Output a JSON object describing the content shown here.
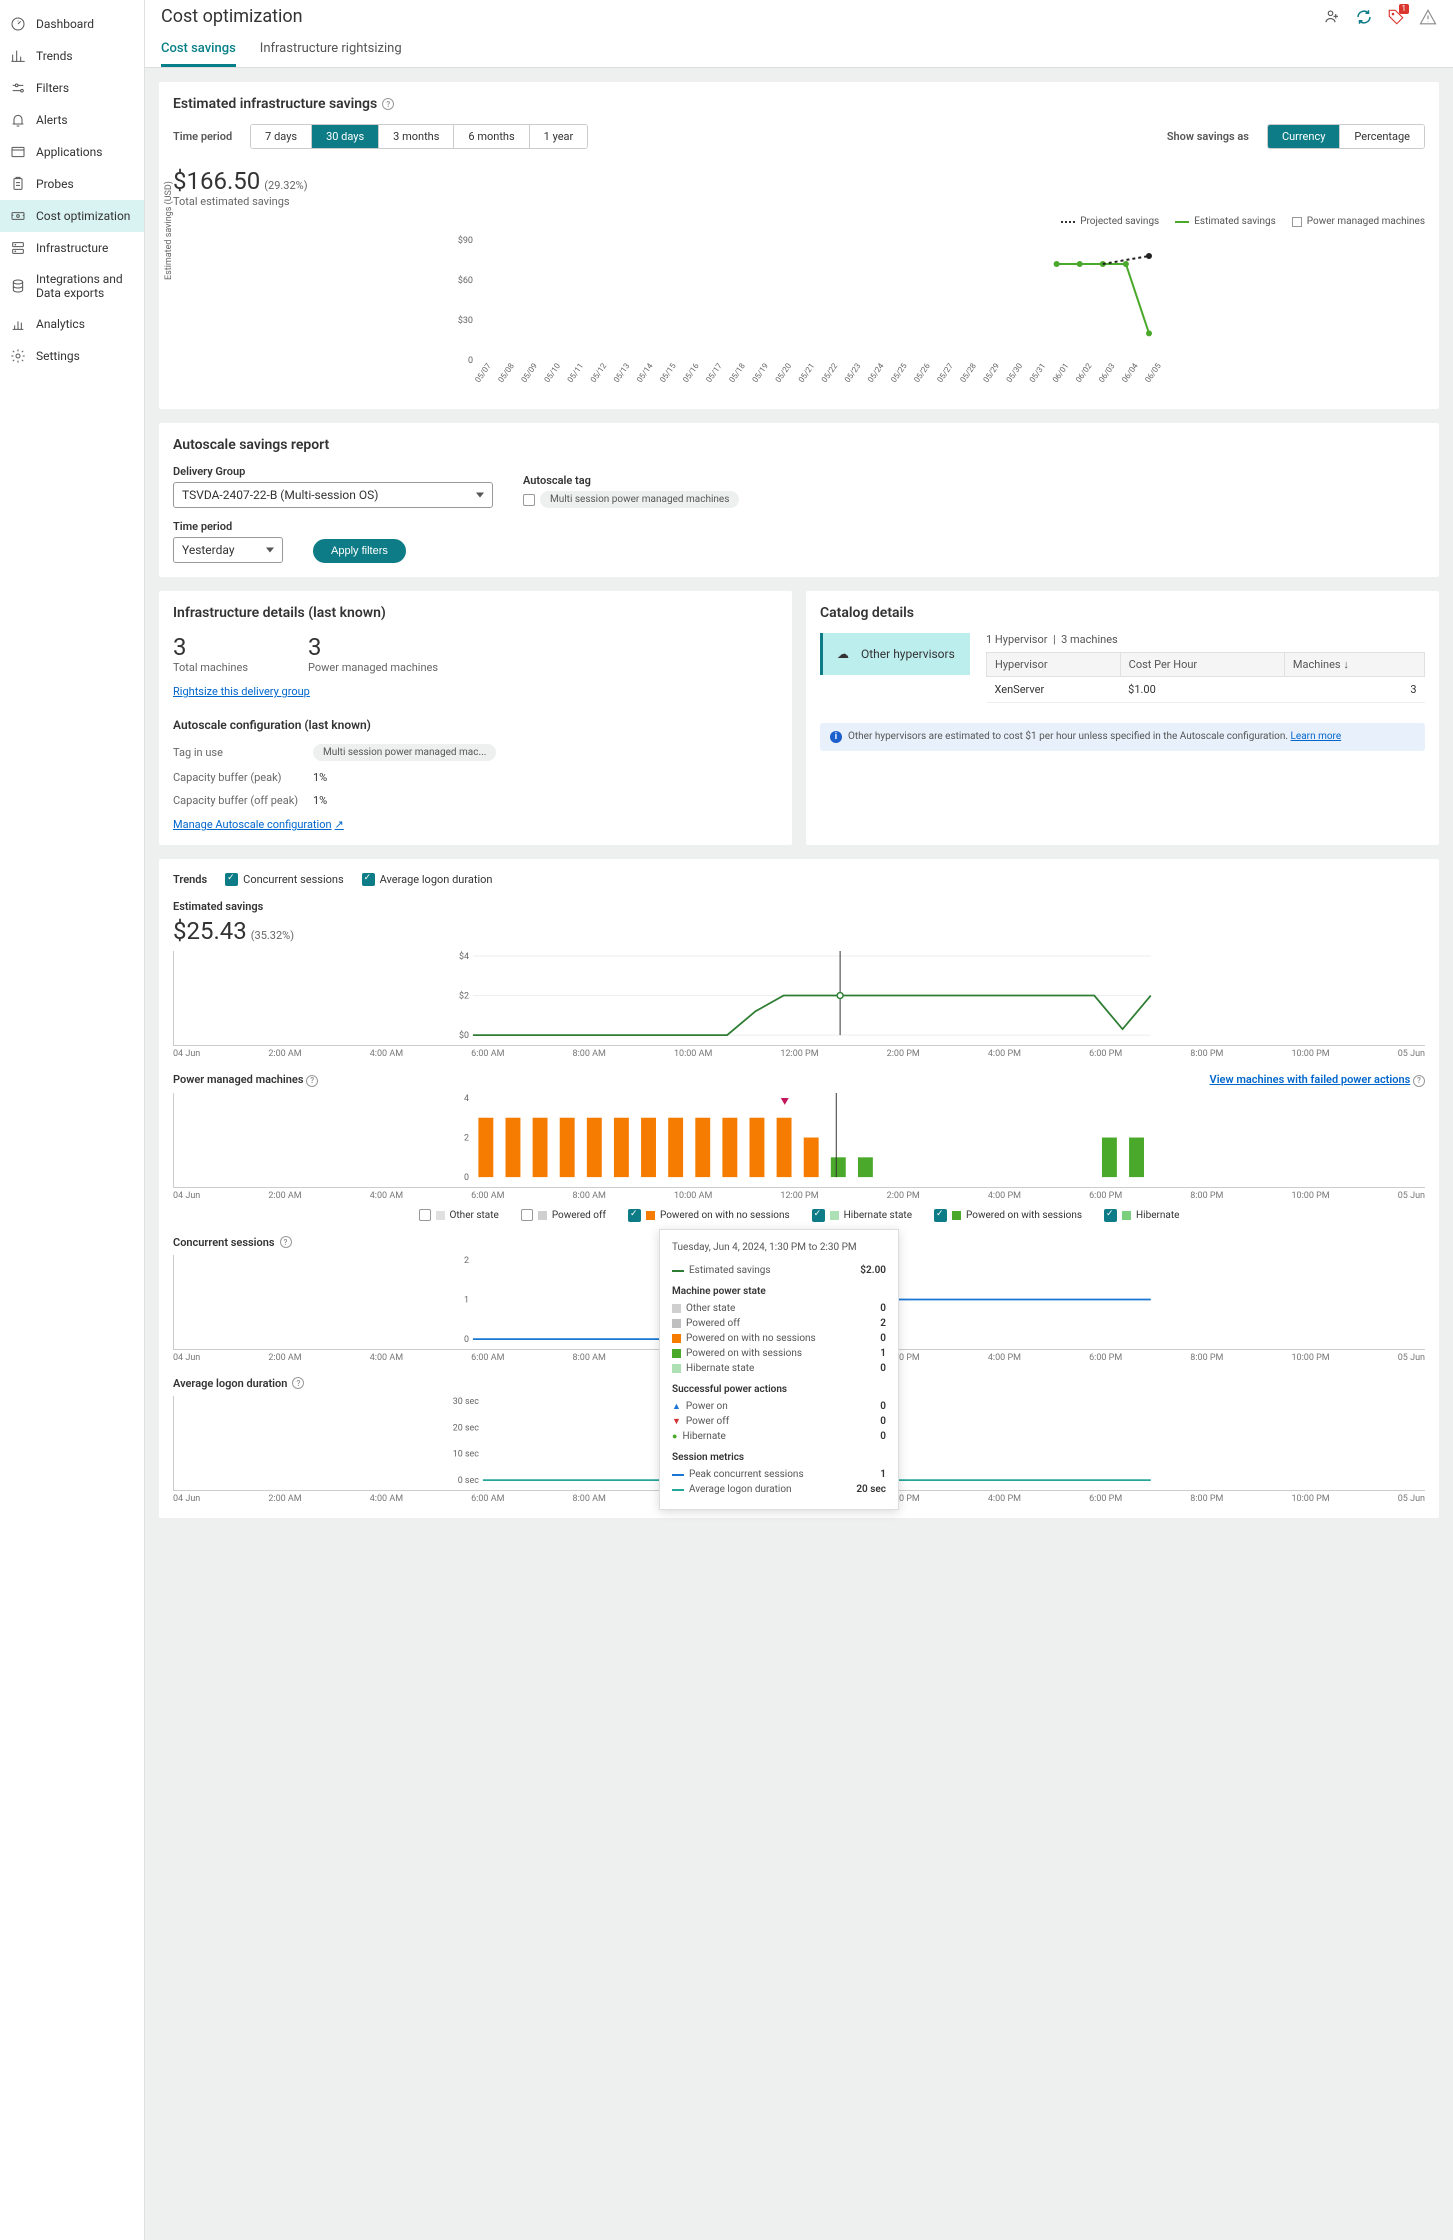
{
  "sidebar": {
    "items": [
      {
        "label": "Dashboard",
        "icon": "gauge"
      },
      {
        "label": "Trends",
        "icon": "bars"
      },
      {
        "label": "Filters",
        "icon": "sliders"
      },
      {
        "label": "Alerts",
        "icon": "bell"
      },
      {
        "label": "Applications",
        "icon": "window"
      },
      {
        "label": "Probes",
        "icon": "clipboard"
      },
      {
        "label": "Cost optimization",
        "icon": "money",
        "active": true
      },
      {
        "label": "Infrastructure",
        "icon": "server"
      },
      {
        "label": "Integrations and Data exports",
        "icon": "db"
      },
      {
        "label": "Analytics",
        "icon": "chart"
      },
      {
        "label": "Settings",
        "icon": "gear"
      }
    ]
  },
  "header": {
    "title": "Cost optimization",
    "tabs": [
      {
        "label": "Cost savings",
        "active": true
      },
      {
        "label": "Infrastructure rightsizing"
      }
    ],
    "alert_badge": "1"
  },
  "est_savings": {
    "title": "Estimated infrastructure savings",
    "time_period_label": "Time period",
    "periods": [
      {
        "label": "7 days"
      },
      {
        "label": "30 days",
        "active": true
      },
      {
        "label": "3 months"
      },
      {
        "label": "6 months"
      },
      {
        "label": "1 year"
      }
    ],
    "show_as_label": "Show savings as",
    "show_as": [
      {
        "label": "Currency",
        "active": true
      },
      {
        "label": "Percentage"
      }
    ],
    "amount": "$166.50",
    "pct": "(29.32%)",
    "sub": "Total estimated savings",
    "legend": {
      "projected": "Projected savings",
      "estimated": "Estimated savings",
      "power": "Power managed machines"
    },
    "y_label": "Estimated savings (USD)",
    "chart": {
      "ylim": [
        0,
        90
      ],
      "yticks": [
        0,
        30,
        60,
        90
      ],
      "ytick_labels": [
        "0",
        "$30",
        "$60",
        "$90"
      ],
      "x_dates": [
        "05/07",
        "05/08",
        "05/09",
        "05/10",
        "05/11",
        "05/12",
        "05/13",
        "05/14",
        "05/15",
        "05/16",
        "05/17",
        "05/18",
        "05/19",
        "05/20",
        "05/21",
        "05/22",
        "05/23",
        "05/24",
        "05/25",
        "05/26",
        "05/27",
        "05/28",
        "05/29",
        "05/30",
        "05/31",
        "06/01",
        "06/02",
        "06/03",
        "06/04",
        "06/05"
      ],
      "estimated_series": {
        "start_idx": 25,
        "values": [
          72,
          72,
          72,
          72,
          20
        ],
        "color": "#4aa82a"
      },
      "projected_series": {
        "start_idx": 27,
        "values": [
          72,
          75,
          78
        ],
        "color": "#222"
      }
    }
  },
  "autoscale": {
    "title": "Autoscale savings report",
    "dg_label": "Delivery Group",
    "dg_value": "TSVDA-2407-22-B (Multi-session OS)",
    "tag_label": "Autoscale tag",
    "tag_chk": "Multi session power managed machines",
    "tp_label": "Time period",
    "tp_value": "Yesterday",
    "apply": "Apply filters"
  },
  "infra": {
    "title": "Infrastructure details (last known)",
    "total_num": "3",
    "total_lbl": "Total machines",
    "pm_num": "3",
    "pm_lbl": "Power managed machines",
    "rightsize_link": "Rightsize this delivery group",
    "cfg_title": "Autoscale configuration (last known)",
    "tag_k": "Tag in use",
    "tag_v": "Multi session power managed mac...",
    "peak_k": "Capacity buffer (peak)",
    "peak_v": "1%",
    "off_k": "Capacity buffer (off peak)",
    "off_v": "1%",
    "manage_link": "Manage Autoscale configuration"
  },
  "catalog": {
    "title": "Catalog details",
    "banner": "Other hypervisors",
    "head_hv": "1 Hypervisor",
    "head_mc": "3 machines",
    "cols": {
      "hv": "Hypervisor",
      "cph": "Cost Per Hour",
      "mc": "Machines"
    },
    "row": {
      "hv": "XenServer",
      "cph": "$1.00",
      "mc": "3"
    },
    "info": "Other hypervisors are estimated to cost $1 per hour unless specified in the Autoscale configuration.",
    "learn": "Learn more"
  },
  "trends": {
    "head_label": "Trends",
    "chk1": "Concurrent sessions",
    "chk2": "Average logon duration",
    "est_title": "Estimated savings",
    "est_amount": "$25.43",
    "est_pct": "(35.32%)",
    "x_labels": [
      "04 Jun",
      "2:00 AM",
      "4:00 AM",
      "6:00 AM",
      "8:00 AM",
      "10:00 AM",
      "12:00 PM",
      "2:00 PM",
      "4:00 PM",
      "6:00 PM",
      "8:00 PM",
      "10:00 PM",
      "05 Jun"
    ],
    "est_chart": {
      "yticks": [
        "$0",
        "$2",
        "$4"
      ],
      "series_color": "#2e7d32",
      "values": [
        0,
        0,
        0,
        0,
        0,
        0,
        0,
        0,
        0,
        0,
        1.2,
        2,
        2,
        2,
        2,
        2,
        2,
        2,
        2,
        2,
        2,
        2,
        2,
        0.3,
        2
      ]
    },
    "pm_title": "Power managed machines",
    "pm_link": "View machines with failed power actions",
    "pm_chart": {
      "yticks": [
        "0",
        "2",
        "4"
      ],
      "bar_color": "#f57c00",
      "bar2_color": "#4aa82a",
      "bars": [
        3,
        3,
        3,
        3,
        3,
        3,
        3,
        3,
        3,
        3,
        3,
        3,
        2,
        1,
        1,
        null,
        null,
        null,
        null,
        null,
        null,
        null,
        null,
        2,
        2
      ],
      "bars2_idx": [
        13,
        14,
        23,
        24
      ]
    },
    "pm_legend": [
      {
        "color": "#e0e0e0",
        "label": "Other state"
      },
      {
        "color": "#cfcfcf",
        "label": "Powered off"
      },
      {
        "color": "#f57c00",
        "label": "Powered on with no sessions",
        "checked": true
      },
      {
        "color": "#aee0b5",
        "label": "Hibernate state",
        "checked": true
      },
      {
        "color": "#4aa82a",
        "label": "Powered on with sessions",
        "checked": true,
        "cut": true
      },
      {
        "color": "#7ccf7c",
        "label": "Hibernate",
        "checked": true
      }
    ],
    "cs_title": "Concurrent sessions",
    "cs_chart": {
      "yticks": [
        "0",
        "1",
        "2"
      ],
      "color": "#1976d2"
    },
    "ld_title": "Average logon duration",
    "ld_chart": {
      "yticks": [
        "0 sec",
        "10 sec",
        "20 sec",
        "30 sec"
      ],
      "color": "#26a69a"
    }
  },
  "tooltip": {
    "title": "Tuesday, Jun 4, 2024, 1:30 PM to 2:30 PM",
    "est_k": "Estimated savings",
    "est_v": "$2.00",
    "sec1": "Machine power state",
    "rows1": [
      {
        "color": "#cfcfcf",
        "k": "Other state",
        "v": "0"
      },
      {
        "color": "#bfbfbf",
        "k": "Powered off",
        "v": "2"
      },
      {
        "color": "#f57c00",
        "k": "Powered on with no sessions",
        "v": "0"
      },
      {
        "color": "#4aa82a",
        "k": "Powered on with sessions",
        "v": "1"
      },
      {
        "color": "#aee0b5",
        "k": "Hibernate state",
        "v": "0"
      }
    ],
    "sec2": "Successful power actions",
    "rows2": [
      {
        "marker": "▲",
        "color": "#1976d2",
        "k": "Power on",
        "v": "0"
      },
      {
        "marker": "▼",
        "color": "#d32f2f",
        "k": "Power off",
        "v": "0"
      },
      {
        "marker": "●",
        "color": "#4aa82a",
        "k": "Hibernate",
        "v": "0"
      }
    ],
    "sec3": "Session metrics",
    "rows3": [
      {
        "line": "#1976d2",
        "k": "Peak concurrent sessions",
        "v": "1"
      },
      {
        "line": "#26a69a",
        "k": "Average logon duration",
        "v": "20 sec"
      }
    ]
  },
  "colors": {
    "teal": "#0e7c86",
    "green": "#4aa82a",
    "orange": "#f57c00",
    "blue": "#1976d2",
    "cyan": "#26a69a"
  }
}
